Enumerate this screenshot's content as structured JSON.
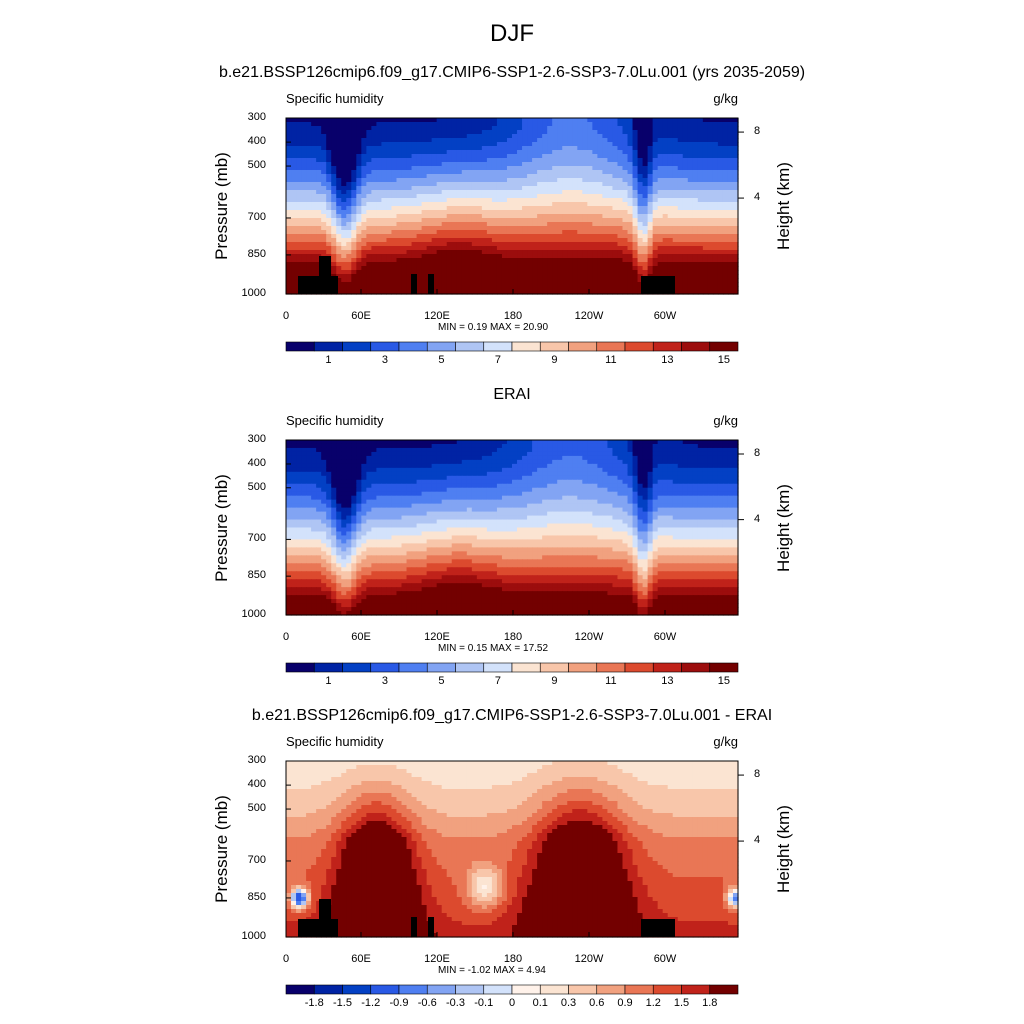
{
  "main_title": "DJF",
  "colors": {
    "abs_scale": [
      "#08006b",
      "#0023a4",
      "#0340c4",
      "#2959e5",
      "#4f7ff1",
      "#82a4f3",
      "#afc5f4",
      "#d3e2fb",
      "#fbe4d2",
      "#f8c6aa",
      "#f1a17f",
      "#e97655",
      "#dc4a2e",
      "#c0221a",
      "#9c0d0d",
      "#730000"
    ],
    "diff_scale": [
      "#08006b",
      "#0023a4",
      "#0340c4",
      "#2959e5",
      "#4f7ff1",
      "#82a4f3",
      "#afc5f4",
      "#d3e2fb",
      "#fff2ea",
      "#fbe4d2",
      "#f8c6aa",
      "#f1a17f",
      "#e97655",
      "#dc4a2e",
      "#c0221a",
      "#730000"
    ],
    "topography": "#000000"
  },
  "chart_data": [
    {
      "type": "heatmap",
      "title": "b.e21.BSSP126cmip6.f09_g17.CMIP6-SSP1-2.6-SSP3-7.0Lu.001 (yrs 2035-2059)",
      "left_string": "Specific humidity",
      "right_string": "g/kg",
      "ylabel": "Pressure (mb)",
      "ylabel_right": "Height (km)",
      "x_ticks": [
        "0",
        "60E",
        "120E",
        "180",
        "120W",
        "60W"
      ],
      "y_ticks": [
        "300",
        "400",
        "500",
        "700",
        "850",
        "1000"
      ],
      "y_right_ticks": [
        "8",
        "4"
      ],
      "ylim": [
        1000,
        300
      ],
      "xlim": [
        0,
        360
      ],
      "min_max_label": "MIN =   0.19  MAX =   20.90",
      "min": 0.19,
      "max": 20.9,
      "colorbar_labels": [
        "1",
        "3",
        "5",
        "7",
        "9",
        "11",
        "13",
        "15"
      ],
      "topography": true
    },
    {
      "type": "heatmap",
      "title": "ERAI",
      "left_string": "Specific humidity",
      "right_string": "g/kg",
      "ylabel": "Pressure (mb)",
      "ylabel_right": "Height (km)",
      "x_ticks": [
        "0",
        "60E",
        "120E",
        "180",
        "120W",
        "60W"
      ],
      "y_ticks": [
        "300",
        "400",
        "500",
        "700",
        "850",
        "1000"
      ],
      "y_right_ticks": [
        "8",
        "4"
      ],
      "ylim": [
        1000,
        300
      ],
      "xlim": [
        0,
        360
      ],
      "min_max_label": "MIN =   0.15  MAX =   17.52",
      "min": 0.15,
      "max": 17.52,
      "colorbar_labels": [
        "1",
        "3",
        "5",
        "7",
        "9",
        "11",
        "13",
        "15"
      ],
      "topography": false
    },
    {
      "type": "heatmap",
      "title": "b.e21.BSSP126cmip6.f09_g17.CMIP6-SSP1-2.6-SSP3-7.0Lu.001 - ERAI",
      "left_string": "Specific humidity",
      "right_string": "g/kg",
      "ylabel": "Pressure (mb)",
      "ylabel_right": "Height (km)",
      "x_ticks": [
        "0",
        "60E",
        "120E",
        "180",
        "120W",
        "60W"
      ],
      "y_ticks": [
        "300",
        "400",
        "500",
        "700",
        "850",
        "1000"
      ],
      "y_right_ticks": [
        "8",
        "4"
      ],
      "ylim": [
        1000,
        300
      ],
      "xlim": [
        0,
        360
      ],
      "min_max_label": "MIN =  -1.02  MAX =   4.94",
      "min": -1.02,
      "max": 4.94,
      "colorbar_labels": [
        "-1.8",
        "-1.5",
        "-1.2",
        "-0.9",
        "-0.6",
        "-0.3",
        "-0.1",
        "0",
        "0.1",
        "0.3",
        "0.6",
        "0.9",
        "1.2",
        "1.5",
        "1.8"
      ],
      "topography": true
    }
  ]
}
